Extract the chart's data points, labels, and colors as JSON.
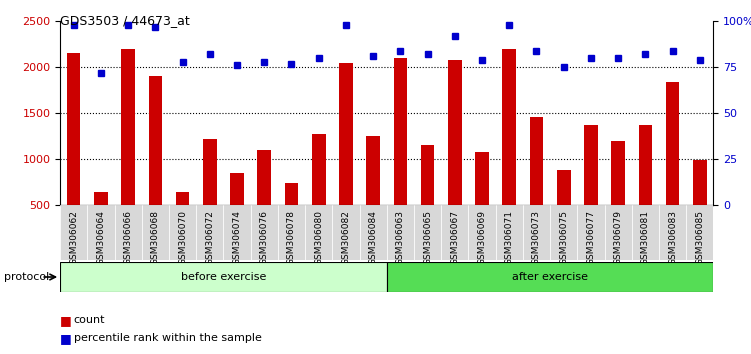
{
  "title": "GDS3503 / 44673_at",
  "categories": [
    "GSM306062",
    "GSM306064",
    "GSM306066",
    "GSM306068",
    "GSM306070",
    "GSM306072",
    "GSM306074",
    "GSM306076",
    "GSM306078",
    "GSM306080",
    "GSM306082",
    "GSM306084",
    "GSM306063",
    "GSM306065",
    "GSM306067",
    "GSM306069",
    "GSM306071",
    "GSM306073",
    "GSM306075",
    "GSM306077",
    "GSM306079",
    "GSM306081",
    "GSM306083",
    "GSM306085"
  ],
  "counts": [
    2150,
    650,
    2200,
    1900,
    650,
    1220,
    850,
    1100,
    740,
    1270,
    2050,
    1250,
    2100,
    1150,
    2075,
    1075,
    2200,
    1460,
    880,
    1370,
    1200,
    1370,
    1840,
    990
  ],
  "percentile_ranks": [
    98,
    72,
    98,
    97,
    78,
    82,
    76,
    78,
    77,
    80,
    98,
    81,
    84,
    82,
    92,
    79,
    98,
    84,
    75,
    80,
    80,
    82,
    84,
    79
  ],
  "bar_color": "#cc0000",
  "dot_color": "#0000cc",
  "before_exercise_count": 12,
  "after_exercise_count": 12,
  "before_color": "#ccffcc",
  "after_color": "#55dd55",
  "protocol_label": "protocol",
  "before_label": "before exercise",
  "after_label": "after exercise",
  "legend_count_label": "count",
  "legend_pct_label": "percentile rank within the sample",
  "ylim_left": [
    500,
    2500
  ],
  "ylim_right": [
    0,
    100
  ],
  "yticks_left": [
    500,
    1000,
    1500,
    2000,
    2500
  ],
  "yticks_right": [
    0,
    25,
    50,
    75,
    100
  ],
  "gridlines": [
    1000,
    1500,
    2000
  ],
  "background_color": "#ffffff",
  "plot_bg_color": "#ffffff",
  "tick_label_bg": "#d8d8d8"
}
